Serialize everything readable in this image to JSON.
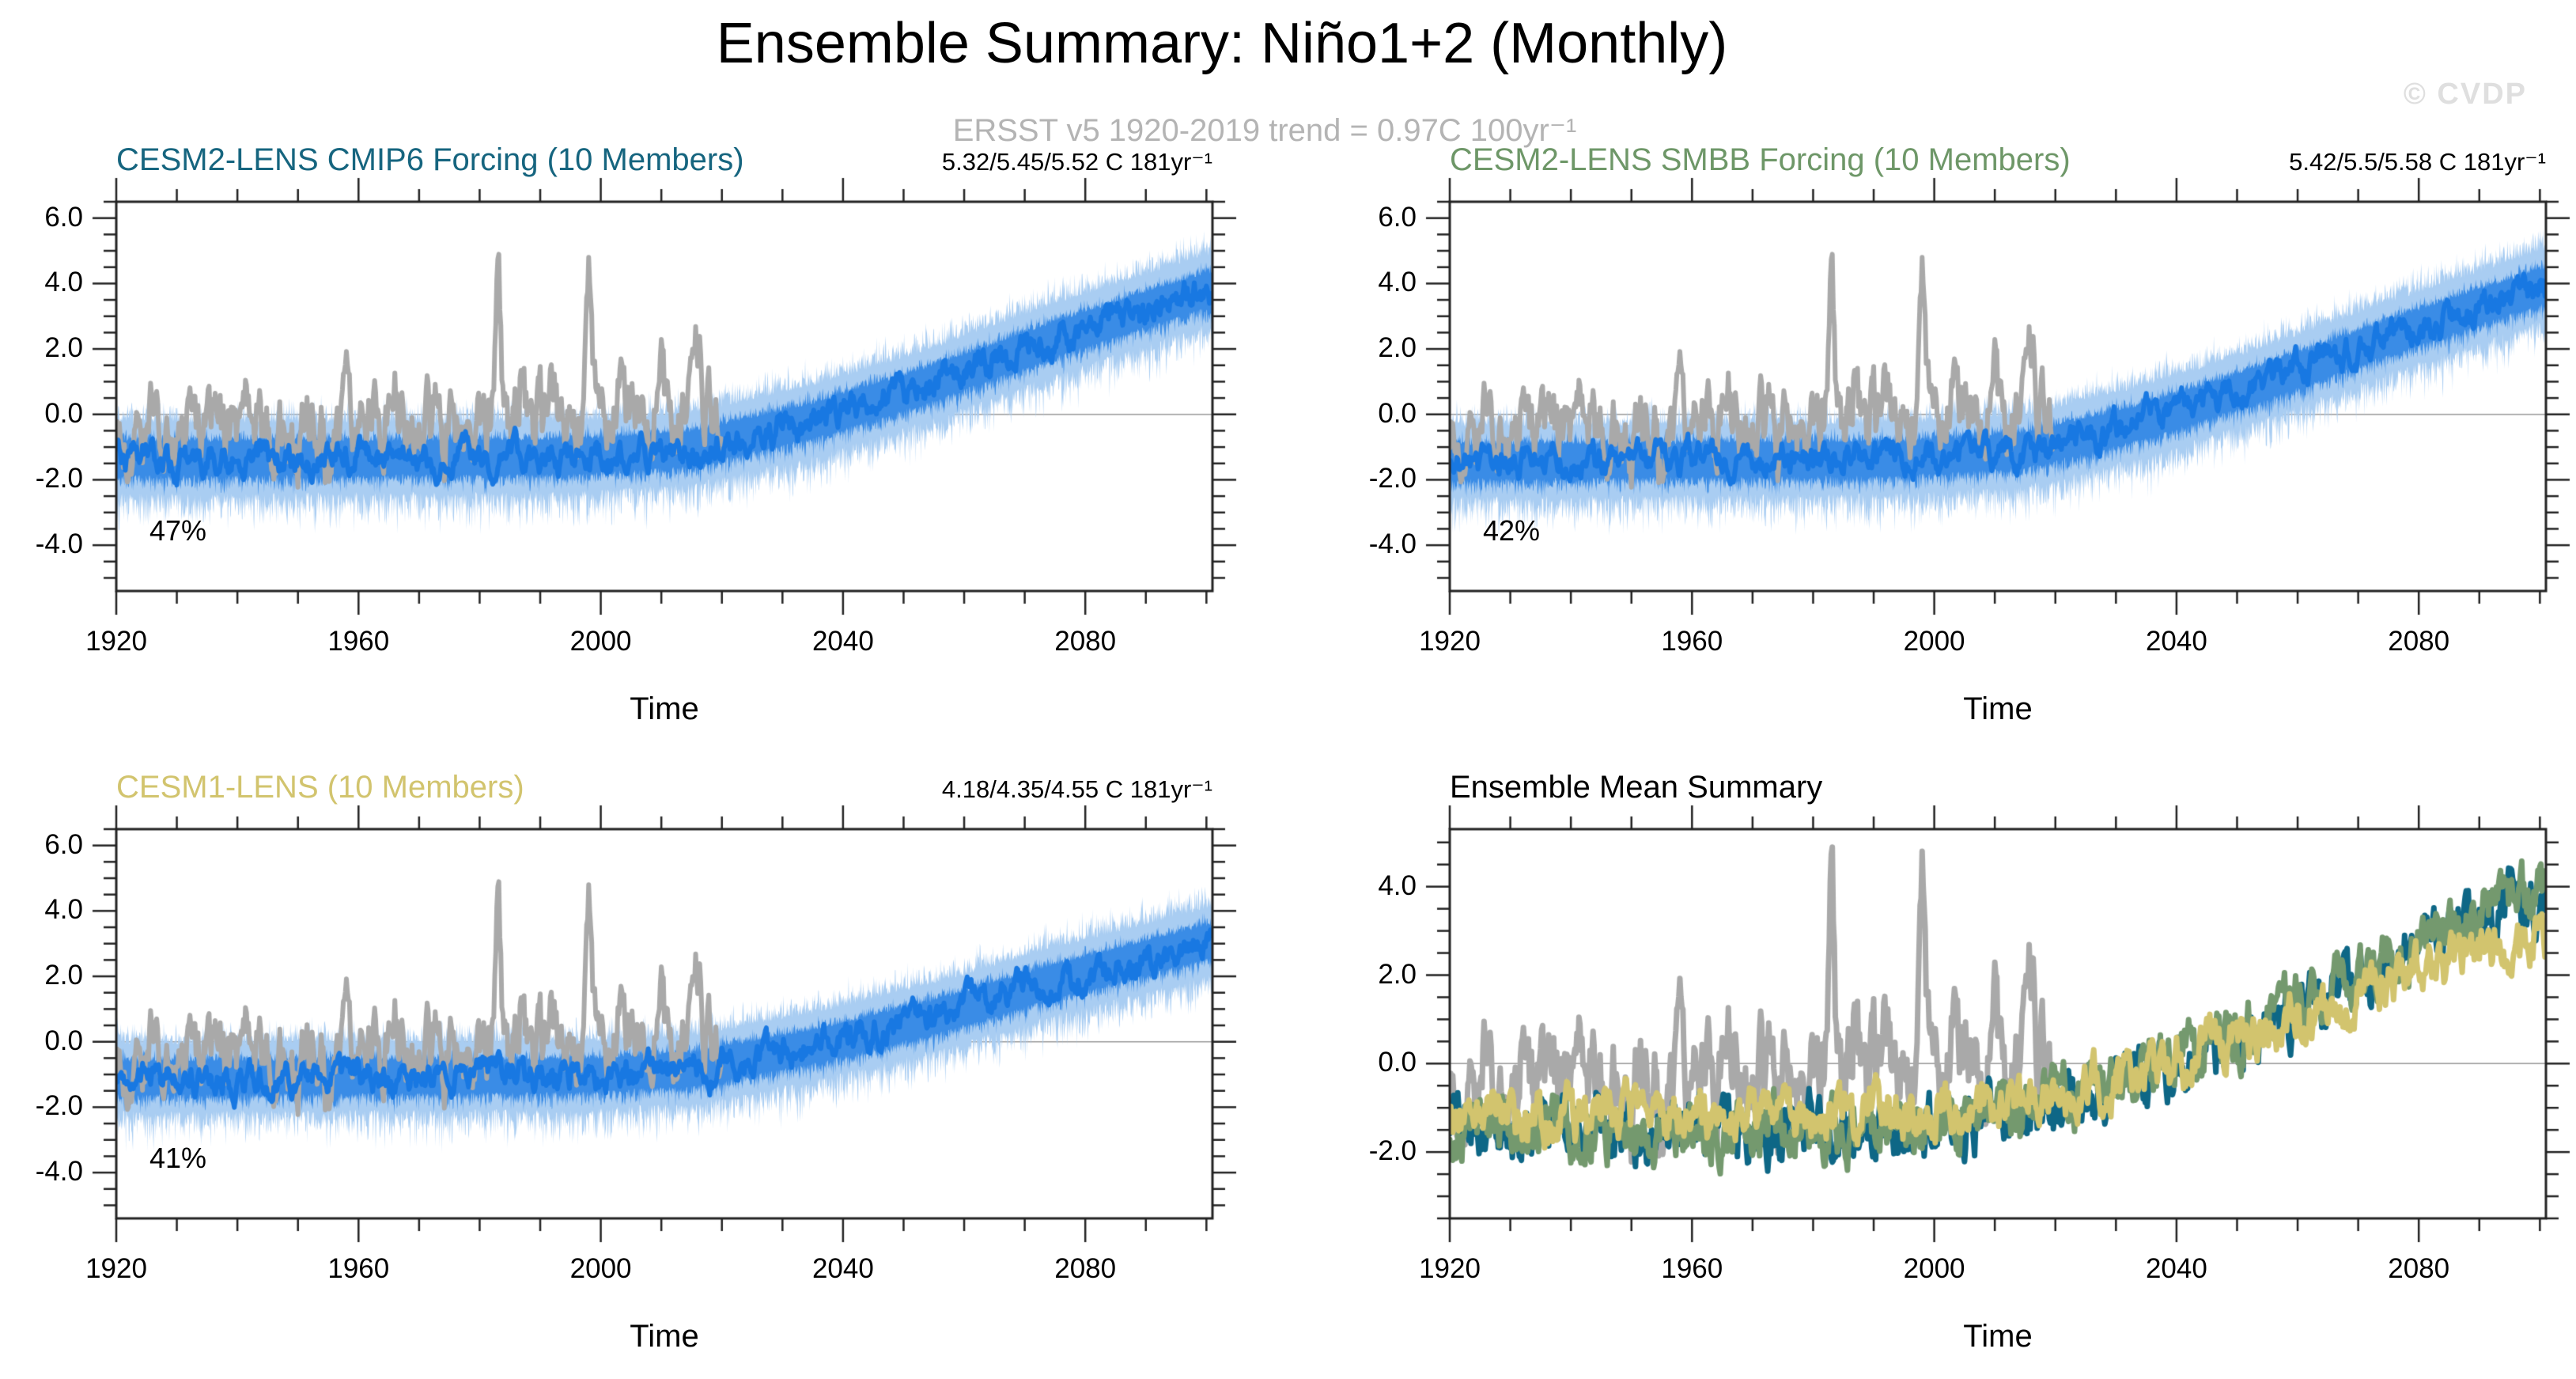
{
  "header": {
    "title": "Ensemble Summary: Niño1+2 (Monthly)",
    "subtitle": "ERSST v5 1920-2019 trend = 0.97C 100yr⁻¹",
    "watermark": "© CVDP"
  },
  "chart_data": [
    {
      "type": "line",
      "title": "CESM2-LENS CMIP6 Forcing (10 Members)",
      "title_color": "#16657f",
      "trend_label": "5.32/5.45/5.52 C 181yr⁻¹",
      "percent_label": "47%",
      "xlabel": "Time",
      "x_range": [
        1920,
        2101
      ],
      "x_ticks": [
        1920,
        1960,
        2000,
        2040,
        2080
      ],
      "x_tick_labels": [
        "1920",
        "1960",
        "2000",
        "2040",
        "2080"
      ],
      "x_minor_step": 10,
      "y_range": [
        -5.4,
        6.5
      ],
      "y_ticks": [
        6,
        4,
        2,
        0,
        -2,
        -4
      ],
      "y_tick_labels": [
        "6.0",
        "4.0",
        "2.0",
        "0.0",
        "-2.0",
        "-4.0"
      ],
      "y_minor_step": 0.5,
      "zero_line": true,
      "grid": false,
      "legend": "none",
      "series": [
        {
          "name": "ensemble-spread",
          "kind": "envelope",
          "color": "#a9cdf2",
          "seed": 101,
          "mean_keypoints": [
            [
              1920,
              -1.35
            ],
            [
              1995,
              -1.3
            ],
            [
              2015,
              -1.05
            ],
            [
              2035,
              -0.2
            ],
            [
              2055,
              0.95
            ],
            [
              2075,
              2.3
            ],
            [
              2100,
              3.8
            ]
          ],
          "half_width": 1.05,
          "jitter": 0.62,
          "x_end": 2101
        },
        {
          "name": "ensemble-members",
          "kind": "envelope",
          "color": "#3a8ce6",
          "seed": 102,
          "mean_keypoints": [
            [
              1920,
              -1.35
            ],
            [
              1995,
              -1.3
            ],
            [
              2015,
              -1.05
            ],
            [
              2035,
              -0.2
            ],
            [
              2055,
              0.95
            ],
            [
              2075,
              2.3
            ],
            [
              2100,
              3.8
            ]
          ],
          "half_width": 0.5,
          "jitter": 0.32,
          "x_end": 2101
        },
        {
          "name": "observations-ersst-v5",
          "kind": "line",
          "color": "#a9a9a9",
          "width": 6,
          "seed": 103,
          "keypoints": [
            [
              1920,
              -0.7
            ],
            [
              2019,
              0.25
            ]
          ],
          "noise": 0.55,
          "rho": 0.65,
          "x_end": 2020,
          "spikes": [
            [
              1926,
              1.9
            ],
            [
              1932,
              1.6
            ],
            [
              1941,
              2.1
            ],
            [
              1950,
              -1.2
            ],
            [
              1955,
              -1.4
            ],
            [
              1958,
              1.5
            ],
            [
              1966,
              1.3
            ],
            [
              1973,
              1.6
            ],
            [
              1974,
              -1.1
            ],
            [
              1983,
              4.4
            ],
            [
              1987,
              1.5
            ],
            [
              1989,
              -0.9
            ],
            [
              1992,
              1.6
            ],
            [
              1998,
              4.5
            ],
            [
              2003,
              1.0
            ],
            [
              2008,
              -0.9
            ],
            [
              2010,
              1.1
            ],
            [
              2016,
              1.9
            ]
          ]
        },
        {
          "name": "ensemble-mean",
          "kind": "line",
          "color": "#1878e2",
          "width": 6,
          "seed": 104,
          "keypoints": [
            [
              1920,
              -1.35
            ],
            [
              1995,
              -1.3
            ],
            [
              2015,
              -1.05
            ],
            [
              2035,
              -0.2
            ],
            [
              2055,
              0.95
            ],
            [
              2075,
              2.3
            ],
            [
              2100,
              3.8
            ]
          ],
          "noise": 0.22,
          "rho": 0.8,
          "x_end": 2101
        }
      ]
    },
    {
      "type": "line",
      "title": "CESM2-LENS SMBB Forcing (10 Members)",
      "title_color": "#6e9768",
      "trend_label": "5.42/5.5/5.58 C 181yr⁻¹",
      "percent_label": "42%",
      "xlabel": "Time",
      "x_range": [
        1920,
        2101
      ],
      "x_ticks": [
        1920,
        1960,
        2000,
        2040,
        2080
      ],
      "x_tick_labels": [
        "1920",
        "1960",
        "2000",
        "2040",
        "2080"
      ],
      "x_minor_step": 10,
      "y_range": [
        -5.4,
        6.5
      ],
      "y_ticks": [
        6,
        4,
        2,
        0,
        -2,
        -4
      ],
      "y_tick_labels": [
        "6.0",
        "4.0",
        "2.0",
        "0.0",
        "-2.0",
        "-4.0"
      ],
      "y_minor_step": 0.5,
      "zero_line": true,
      "grid": false,
      "legend": "none",
      "series": [
        {
          "name": "ensemble-spread",
          "kind": "envelope",
          "color": "#a9cdf2",
          "seed": 201,
          "mean_keypoints": [
            [
              1920,
              -1.45
            ],
            [
              1995,
              -1.35
            ],
            [
              2015,
              -1.1
            ],
            [
              2035,
              -0.2
            ],
            [
              2055,
              1.0
            ],
            [
              2075,
              2.35
            ],
            [
              2100,
              3.9
            ]
          ],
          "half_width": 1.05,
          "jitter": 0.62,
          "x_end": 2101
        },
        {
          "name": "ensemble-members",
          "kind": "envelope",
          "color": "#3a8ce6",
          "seed": 202,
          "mean_keypoints": [
            [
              1920,
              -1.45
            ],
            [
              1995,
              -1.35
            ],
            [
              2015,
              -1.1
            ],
            [
              2035,
              -0.2
            ],
            [
              2055,
              1.0
            ],
            [
              2075,
              2.35
            ],
            [
              2100,
              3.9
            ]
          ],
          "half_width": 0.5,
          "jitter": 0.32,
          "x_end": 2101
        },
        {
          "name": "observations-ersst-v5",
          "kind": "line",
          "color": "#a9a9a9",
          "width": 6,
          "seed": 103,
          "keypoints": [
            [
              1920,
              -0.7
            ],
            [
              2019,
              0.25
            ]
          ],
          "noise": 0.55,
          "rho": 0.65,
          "x_end": 2020,
          "spikes": [
            [
              1926,
              1.9
            ],
            [
              1932,
              1.6
            ],
            [
              1941,
              2.1
            ],
            [
              1950,
              -1.2
            ],
            [
              1955,
              -1.4
            ],
            [
              1958,
              1.5
            ],
            [
              1966,
              1.3
            ],
            [
              1973,
              1.6
            ],
            [
              1974,
              -1.1
            ],
            [
              1983,
              4.4
            ],
            [
              1987,
              1.5
            ],
            [
              1989,
              -0.9
            ],
            [
              1992,
              1.6
            ],
            [
              1998,
              4.5
            ],
            [
              2003,
              1.0
            ],
            [
              2008,
              -0.9
            ],
            [
              2010,
              1.1
            ],
            [
              2016,
              1.9
            ]
          ]
        },
        {
          "name": "ensemble-mean",
          "kind": "line",
          "color": "#1878e2",
          "width": 6,
          "seed": 204,
          "keypoints": [
            [
              1920,
              -1.45
            ],
            [
              1995,
              -1.35
            ],
            [
              2015,
              -1.1
            ],
            [
              2035,
              -0.2
            ],
            [
              2055,
              1.0
            ],
            [
              2075,
              2.35
            ],
            [
              2100,
              3.9
            ]
          ],
          "noise": 0.22,
          "rho": 0.8,
          "x_end": 2101
        }
      ]
    },
    {
      "type": "line",
      "title": "CESM1-LENS (10 Members)",
      "title_color": "#d2c46e",
      "trend_label": "4.18/4.35/4.55 C 181yr⁻¹",
      "percent_label": "41%",
      "xlabel": "Time",
      "x_range": [
        1920,
        2101
      ],
      "x_ticks": [
        1920,
        1960,
        2000,
        2040,
        2080
      ],
      "x_tick_labels": [
        "1920",
        "1960",
        "2000",
        "2040",
        "2080"
      ],
      "x_minor_step": 10,
      "y_range": [
        -5.4,
        6.5
      ],
      "y_ticks": [
        6,
        4,
        2,
        0,
        -2,
        -4
      ],
      "y_tick_labels": [
        "6.0",
        "4.0",
        "2.0",
        "0.0",
        "-2.0",
        "-4.0"
      ],
      "y_minor_step": 0.5,
      "zero_line": true,
      "grid": false,
      "legend": "none",
      "series": [
        {
          "name": "ensemble-spread",
          "kind": "envelope",
          "color": "#a9cdf2",
          "seed": 301,
          "mean_keypoints": [
            [
              1920,
              -1.1
            ],
            [
              1995,
              -1.05
            ],
            [
              2015,
              -0.85
            ],
            [
              2035,
              -0.15
            ],
            [
              2055,
              0.75
            ],
            [
              2075,
              1.85
            ],
            [
              2100,
              3.05
            ]
          ],
          "half_width": 1.0,
          "jitter": 0.6,
          "x_end": 2101
        },
        {
          "name": "ensemble-members",
          "kind": "envelope",
          "color": "#3a8ce6",
          "seed": 302,
          "mean_keypoints": [
            [
              1920,
              -1.1
            ],
            [
              1995,
              -1.05
            ],
            [
              2015,
              -0.85
            ],
            [
              2035,
              -0.15
            ],
            [
              2055,
              0.75
            ],
            [
              2075,
              1.85
            ],
            [
              2100,
              3.05
            ]
          ],
          "half_width": 0.48,
          "jitter": 0.3,
          "x_end": 2101
        },
        {
          "name": "observations-ersst-v5",
          "kind": "line",
          "color": "#a9a9a9",
          "width": 6,
          "seed": 103,
          "keypoints": [
            [
              1920,
              -0.7
            ],
            [
              2019,
              0.25
            ]
          ],
          "noise": 0.55,
          "rho": 0.65,
          "x_end": 2020,
          "spikes": [
            [
              1926,
              1.9
            ],
            [
              1932,
              1.6
            ],
            [
              1941,
              2.1
            ],
            [
              1950,
              -1.2
            ],
            [
              1955,
              -1.4
            ],
            [
              1958,
              1.5
            ],
            [
              1966,
              1.3
            ],
            [
              1973,
              1.6
            ],
            [
              1974,
              -1.1
            ],
            [
              1983,
              4.4
            ],
            [
              1987,
              1.5
            ],
            [
              1989,
              -0.9
            ],
            [
              1992,
              1.6
            ],
            [
              1998,
              4.5
            ],
            [
              2003,
              1.0
            ],
            [
              2008,
              -0.9
            ],
            [
              2010,
              1.1
            ],
            [
              2016,
              1.9
            ]
          ]
        },
        {
          "name": "ensemble-mean",
          "kind": "line",
          "color": "#1878e2",
          "width": 6,
          "seed": 304,
          "keypoints": [
            [
              1920,
              -1.1
            ],
            [
              1995,
              -1.05
            ],
            [
              2015,
              -0.85
            ],
            [
              2035,
              -0.15
            ],
            [
              2055,
              0.75
            ],
            [
              2075,
              1.85
            ],
            [
              2100,
              3.05
            ]
          ],
          "noise": 0.22,
          "rho": 0.8,
          "x_end": 2101
        }
      ]
    },
    {
      "type": "line",
      "title": "Ensemble Mean Summary",
      "title_color": "#000000",
      "xlabel": "Time",
      "x_range": [
        1920,
        2101
      ],
      "x_ticks": [
        1920,
        1960,
        2000,
        2040,
        2080
      ],
      "x_tick_labels": [
        "1920",
        "1960",
        "2000",
        "2040",
        "2080"
      ],
      "x_minor_step": 10,
      "y_range": [
        -3.5,
        5.3
      ],
      "y_ticks": [
        4,
        2,
        0,
        -2
      ],
      "y_tick_labels": [
        "4.0",
        "2.0",
        "0.0",
        "-2.0"
      ],
      "y_minor_step": 0.5,
      "zero_line": true,
      "grid": false,
      "legend": "none",
      "series": [
        {
          "name": "observations-ersst-v5",
          "kind": "line",
          "color": "#a9a9a9",
          "width": 7,
          "seed": 103,
          "keypoints": [
            [
              1920,
              -0.7
            ],
            [
              2019,
              0.25
            ]
          ],
          "noise": 0.55,
          "rho": 0.65,
          "x_end": 2020,
          "spikes": [
            [
              1926,
              1.9
            ],
            [
              1932,
              1.6
            ],
            [
              1941,
              2.1
            ],
            [
              1950,
              -1.2
            ],
            [
              1955,
              -1.4
            ],
            [
              1958,
              1.5
            ],
            [
              1966,
              1.3
            ],
            [
              1973,
              1.6
            ],
            [
              1974,
              -1.1
            ],
            [
              1983,
              4.4
            ],
            [
              1987,
              1.5
            ],
            [
              1989,
              -0.9
            ],
            [
              1992,
              1.6
            ],
            [
              1998,
              4.5
            ],
            [
              2003,
              1.0
            ],
            [
              2008,
              -0.9
            ],
            [
              2010,
              1.1
            ],
            [
              2016,
              1.9
            ]
          ]
        },
        {
          "name": "cesm2-lens-cmip6-mean",
          "kind": "line",
          "color": "#0e6786",
          "width": 7,
          "seed": 402,
          "keypoints": [
            [
              1920,
              -1.5
            ],
            [
              1995,
              -1.45
            ],
            [
              2015,
              -1.15
            ],
            [
              2035,
              -0.25
            ],
            [
              2055,
              0.9
            ],
            [
              2075,
              2.3
            ],
            [
              2100,
              3.9
            ]
          ],
          "noise": 0.34,
          "rho": 0.7,
          "x_end": 2101
        },
        {
          "name": "cesm2-lens-smbb-mean",
          "kind": "line",
          "color": "#74996e",
          "width": 7,
          "seed": 403,
          "keypoints": [
            [
              1920,
              -1.55
            ],
            [
              1995,
              -1.45
            ],
            [
              2015,
              -1.1
            ],
            [
              2035,
              -0.2
            ],
            [
              2055,
              0.95
            ],
            [
              2075,
              2.35
            ],
            [
              2100,
              3.9
            ]
          ],
          "noise": 0.32,
          "rho": 0.7,
          "x_end": 2101
        },
        {
          "name": "cesm1-lens-mean",
          "kind": "line",
          "color": "#d2c46e",
          "width": 7,
          "seed": 404,
          "keypoints": [
            [
              1920,
              -1.2
            ],
            [
              1995,
              -1.15
            ],
            [
              2015,
              -0.9
            ],
            [
              2035,
              -0.2
            ],
            [
              2055,
              0.7
            ],
            [
              2075,
              1.75
            ],
            [
              2100,
              2.95
            ]
          ],
          "noise": 0.28,
          "rho": 0.7,
          "x_end": 2101
        }
      ]
    }
  ]
}
